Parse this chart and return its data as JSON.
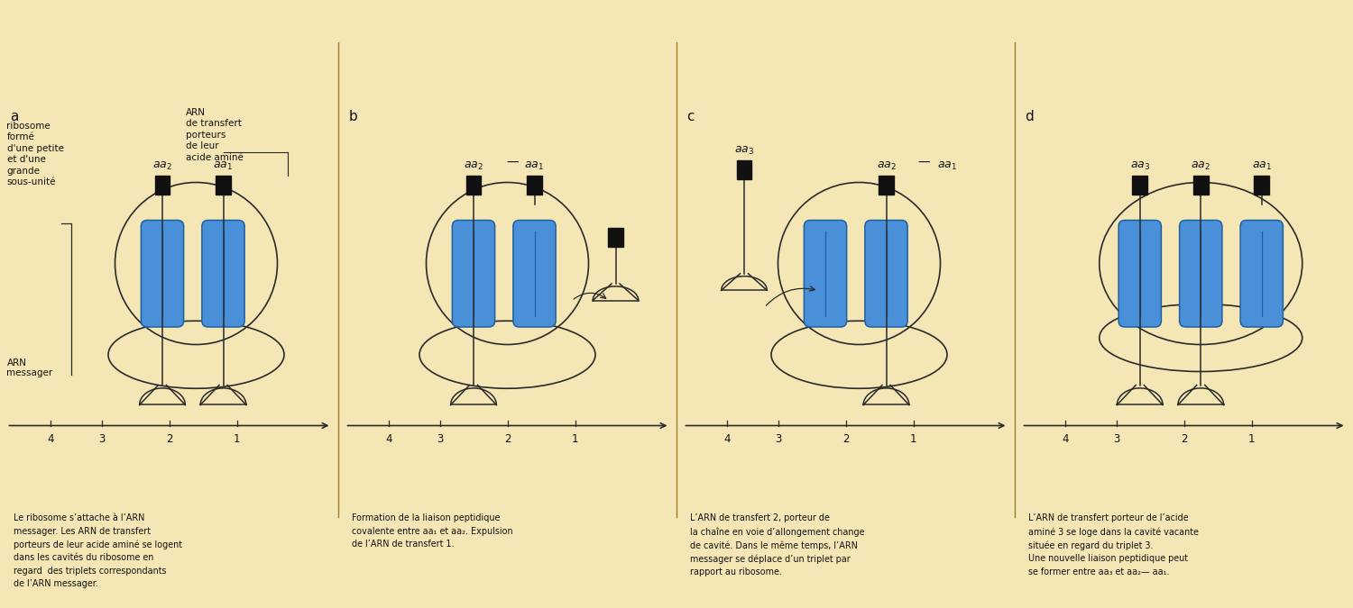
{
  "bg": "#f5e6b5",
  "lc": "#2a2a2a",
  "blue": "#4a90d9",
  "blue_edge": "#2060a0",
  "black": "#111111",
  "tc": "#111111",
  "panel_labels": [
    "a",
    "b",
    "c",
    "d"
  ],
  "caption_a": "Le ribosome s’attache à l’ARN\nmessager. Les ARN de transfert\nporteurs de leur acide aminé se logent\ndans les cavités du ribosome en\nregard  des triplets correspondants\nde l’ARN messager.",
  "caption_b": "Formation de la liaison peptidique\ncovalente entre aa₁ et aa₂. Expulsion\nde l’ARN de transfert 1.",
  "caption_c": "L’ARN de transfert 2, porteur de\nla chaîne en voie d’allongement change\nde cavité. Dans le même temps, l’ARN\nmessager se déplace d’un triplet par\nrapport au ribosome.",
  "caption_d": "L’ARN de transfert porteur de l’acide\naminé 3 se loge dans la cavité vacante\nsituée en regard du triplet 3.\nUne nouvelle liaison peptidique peut\nse former entre aa₃ et aa₂— aa₁."
}
